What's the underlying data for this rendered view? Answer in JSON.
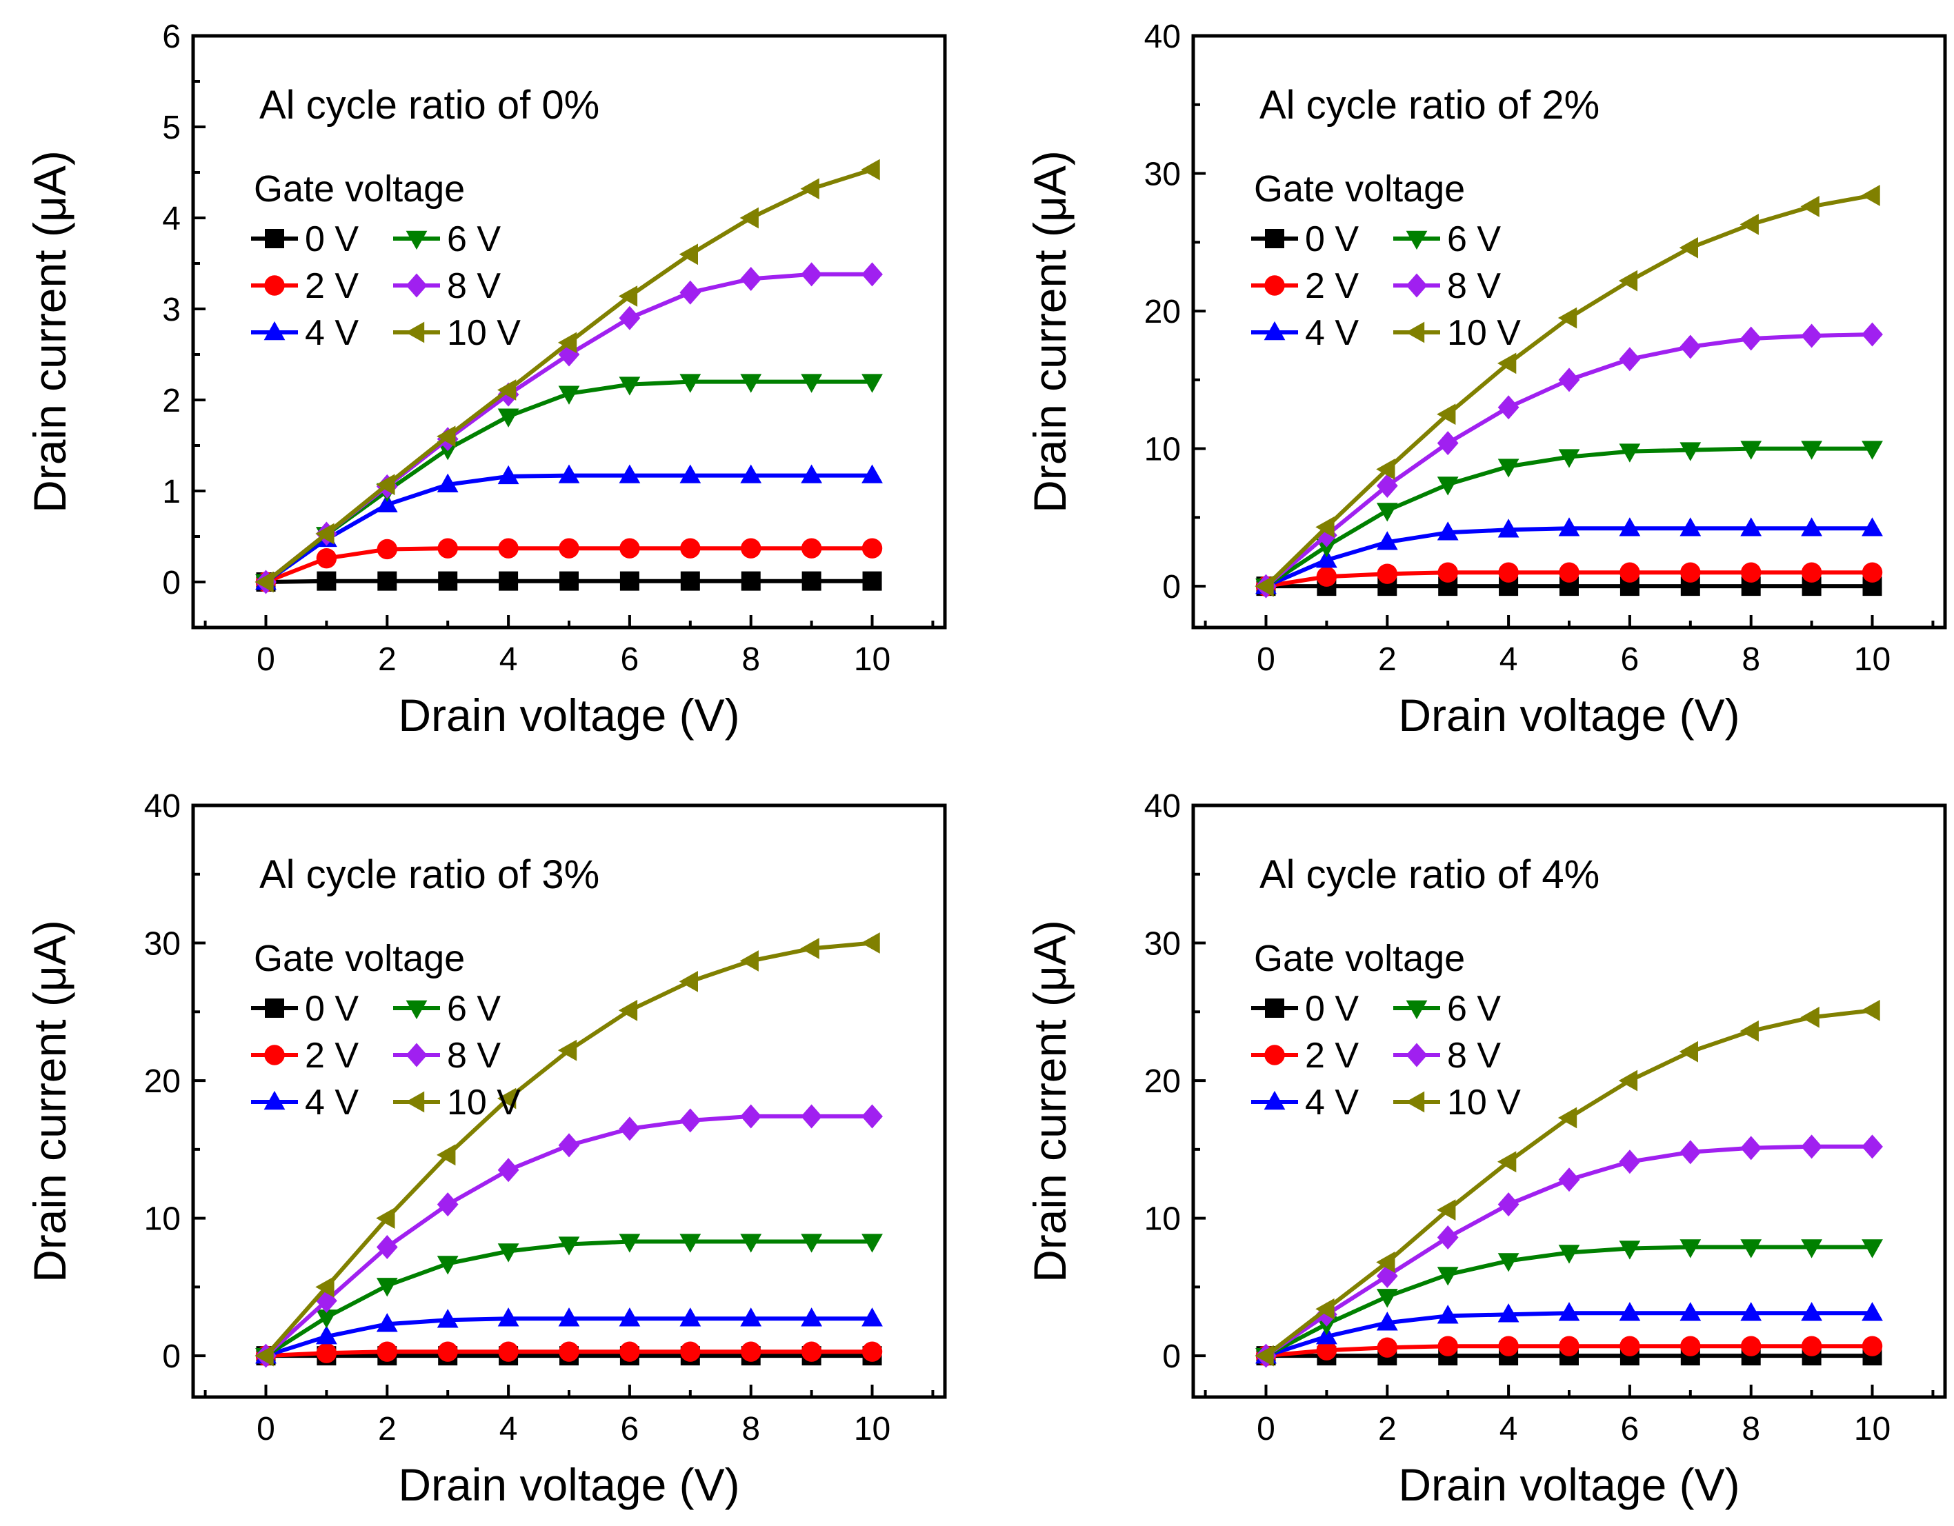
{
  "chart_data": [
    {
      "type": "line",
      "title": "Al cycle ratio of 0%",
      "xlabel": "Drain voltage (V)",
      "ylabel": "Drain current (μA)",
      "xlim": [
        -1.2,
        11.2
      ],
      "ylim": [
        -0.5,
        6
      ],
      "xticks": [
        0,
        2,
        4,
        6,
        8,
        10
      ],
      "yticks": [
        0,
        1,
        2,
        3,
        4,
        5,
        6
      ],
      "xtick_labels": [
        "0",
        "2",
        "4",
        "6",
        "8",
        "10"
      ],
      "ytick_labels": [
        "0",
        "1",
        "2",
        "3",
        "4",
        "5",
        "6"
      ],
      "legend_title": "Gate voltage",
      "legend_placement": "upper-left",
      "grid": false,
      "x": [
        0,
        1,
        2,
        3,
        4,
        5,
        6,
        7,
        8,
        9,
        10
      ],
      "series": [
        {
          "name": "0 V",
          "color": "#000000",
          "marker": "square",
          "values": [
            0,
            0.01,
            0.01,
            0.01,
            0.01,
            0.01,
            0.01,
            0.01,
            0.01,
            0.01,
            0.01
          ]
        },
        {
          "name": "2 V",
          "color": "#ff0000",
          "marker": "circle",
          "values": [
            0,
            0.26,
            0.36,
            0.37,
            0.37,
            0.37,
            0.37,
            0.37,
            0.37,
            0.37,
            0.37
          ]
        },
        {
          "name": "4 V",
          "color": "#0000ff",
          "marker": "triangle-up",
          "values": [
            0,
            0.47,
            0.85,
            1.07,
            1.16,
            1.17,
            1.17,
            1.17,
            1.17,
            1.17,
            1.17
          ]
        },
        {
          "name": "6 V",
          "color": "#008000",
          "marker": "triangle-down",
          "values": [
            0,
            0.52,
            1.0,
            1.46,
            1.82,
            2.07,
            2.17,
            2.2,
            2.2,
            2.2,
            2.2
          ]
        },
        {
          "name": "8 V",
          "color": "#a020f0",
          "marker": "diamond",
          "values": [
            0,
            0.53,
            1.05,
            1.57,
            2.06,
            2.5,
            2.9,
            3.18,
            3.33,
            3.38,
            3.38
          ]
        },
        {
          "name": "10 V",
          "color": "#808000",
          "marker": "triangle-left",
          "values": [
            0,
            0.53,
            1.07,
            1.6,
            2.11,
            2.63,
            3.14,
            3.6,
            4.0,
            4.32,
            4.53
          ]
        }
      ]
    },
    {
      "type": "line",
      "title": "Al cycle ratio of 2%",
      "xlabel": "Drain voltage (V)",
      "ylabel": "Drain current (μA)",
      "xlim": [
        -1.2,
        11.2
      ],
      "ylim": [
        -3,
        40
      ],
      "xticks": [
        0,
        2,
        4,
        6,
        8,
        10
      ],
      "yticks": [
        0,
        10,
        20,
        30,
        40
      ],
      "xtick_labels": [
        "0",
        "2",
        "4",
        "6",
        "8",
        "10"
      ],
      "ytick_labels": [
        "0",
        "10",
        "20",
        "30",
        "40"
      ],
      "legend_title": "Gate voltage",
      "legend_placement": "upper-left",
      "grid": false,
      "x": [
        0,
        1,
        2,
        3,
        4,
        5,
        6,
        7,
        8,
        9,
        10
      ],
      "series": [
        {
          "name": "0 V",
          "color": "#000000",
          "marker": "square",
          "values": [
            0,
            0,
            0,
            0,
            0,
            0,
            0,
            0,
            0,
            0,
            0
          ]
        },
        {
          "name": "2 V",
          "color": "#ff0000",
          "marker": "circle",
          "values": [
            0,
            0.7,
            0.9,
            1.0,
            1.0,
            1.0,
            1.0,
            1.0,
            1.0,
            1.0,
            1.0
          ]
        },
        {
          "name": "4 V",
          "color": "#0000ff",
          "marker": "triangle-up",
          "values": [
            0,
            1.9,
            3.2,
            3.9,
            4.1,
            4.2,
            4.2,
            4.2,
            4.2,
            4.2,
            4.2
          ]
        },
        {
          "name": "6 V",
          "color": "#008000",
          "marker": "triangle-down",
          "values": [
            0,
            2.9,
            5.5,
            7.4,
            8.7,
            9.4,
            9.8,
            9.9,
            10.0,
            10.0,
            10.0
          ]
        },
        {
          "name": "8 V",
          "color": "#a020f0",
          "marker": "diamond",
          "values": [
            0,
            3.7,
            7.3,
            10.4,
            13.0,
            15.0,
            16.5,
            17.4,
            18.0,
            18.2,
            18.3
          ]
        },
        {
          "name": "10 V",
          "color": "#808000",
          "marker": "triangle-left",
          "values": [
            0,
            4.3,
            8.5,
            12.5,
            16.2,
            19.5,
            22.2,
            24.6,
            26.3,
            27.6,
            28.4
          ]
        }
      ]
    },
    {
      "type": "line",
      "title": "Al cycle ratio of 3%",
      "xlabel": "Drain voltage (V)",
      "ylabel": "Drain current (μA)",
      "xlim": [
        -1.2,
        11.2
      ],
      "ylim": [
        -3,
        40
      ],
      "xticks": [
        0,
        2,
        4,
        6,
        8,
        10
      ],
      "yticks": [
        0,
        10,
        20,
        30,
        40
      ],
      "xtick_labels": [
        "0",
        "2",
        "4",
        "6",
        "8",
        "10"
      ],
      "ytick_labels": [
        "0",
        "10",
        "20",
        "30",
        "40"
      ],
      "legend_title": "Gate voltage",
      "legend_placement": "upper-left",
      "grid": false,
      "x": [
        0,
        1,
        2,
        3,
        4,
        5,
        6,
        7,
        8,
        9,
        10
      ],
      "series": [
        {
          "name": "0 V",
          "color": "#000000",
          "marker": "square",
          "values": [
            0,
            0,
            0,
            0,
            0,
            0,
            0,
            0,
            0,
            0,
            0
          ]
        },
        {
          "name": "2 V",
          "color": "#ff0000",
          "marker": "circle",
          "values": [
            0,
            0.2,
            0.3,
            0.3,
            0.3,
            0.3,
            0.3,
            0.3,
            0.3,
            0.3,
            0.3
          ]
        },
        {
          "name": "4 V",
          "color": "#0000ff",
          "marker": "triangle-up",
          "values": [
            0,
            1.4,
            2.3,
            2.6,
            2.7,
            2.7,
            2.7,
            2.7,
            2.7,
            2.7,
            2.7
          ]
        },
        {
          "name": "6 V",
          "color": "#008000",
          "marker": "triangle-down",
          "values": [
            0,
            2.8,
            5.1,
            6.7,
            7.6,
            8.1,
            8.3,
            8.3,
            8.3,
            8.3,
            8.3
          ]
        },
        {
          "name": "8 V",
          "color": "#a020f0",
          "marker": "diamond",
          "values": [
            0,
            4.0,
            7.9,
            11.0,
            13.5,
            15.3,
            16.5,
            17.1,
            17.4,
            17.4,
            17.4
          ]
        },
        {
          "name": "10 V",
          "color": "#808000",
          "marker": "triangle-left",
          "values": [
            0,
            5.0,
            10.0,
            14.6,
            18.7,
            22.2,
            25.1,
            27.2,
            28.7,
            29.6,
            30.0
          ]
        }
      ]
    },
    {
      "type": "line",
      "title": "Al cycle ratio of 4%",
      "xlabel": "Drain voltage (V)",
      "ylabel": "Drain current (μA)",
      "xlim": [
        -1.2,
        11.2
      ],
      "ylim": [
        -3,
        40
      ],
      "xticks": [
        0,
        2,
        4,
        6,
        8,
        10
      ],
      "yticks": [
        0,
        10,
        20,
        30,
        40
      ],
      "xtick_labels": [
        "0",
        "2",
        "4",
        "6",
        "8",
        "10"
      ],
      "ytick_labels": [
        "0",
        "10",
        "20",
        "30",
        "40"
      ],
      "legend_title": "Gate voltage",
      "legend_placement": "upper-left",
      "grid": false,
      "x": [
        0,
        1,
        2,
        3,
        4,
        5,
        6,
        7,
        8,
        9,
        10
      ],
      "series": [
        {
          "name": "0 V",
          "color": "#000000",
          "marker": "square",
          "values": [
            0,
            0,
            0,
            0,
            0,
            0,
            0,
            0,
            0,
            0,
            0
          ]
        },
        {
          "name": "2 V",
          "color": "#ff0000",
          "marker": "circle",
          "values": [
            0,
            0.4,
            0.6,
            0.7,
            0.7,
            0.7,
            0.7,
            0.7,
            0.7,
            0.7,
            0.7
          ]
        },
        {
          "name": "4 V",
          "color": "#0000ff",
          "marker": "triangle-up",
          "values": [
            0,
            1.4,
            2.4,
            2.9,
            3.0,
            3.1,
            3.1,
            3.1,
            3.1,
            3.1,
            3.1
          ]
        },
        {
          "name": "6 V",
          "color": "#008000",
          "marker": "triangle-down",
          "values": [
            0,
            2.3,
            4.3,
            5.9,
            6.9,
            7.5,
            7.8,
            7.9,
            7.9,
            7.9,
            7.9
          ]
        },
        {
          "name": "8 V",
          "color": "#a020f0",
          "marker": "diamond",
          "values": [
            0,
            3.0,
            5.8,
            8.6,
            11.0,
            12.8,
            14.1,
            14.8,
            15.1,
            15.2,
            15.2
          ]
        },
        {
          "name": "10 V",
          "color": "#808000",
          "marker": "triangle-left",
          "values": [
            0,
            3.4,
            6.8,
            10.6,
            14.1,
            17.3,
            20.0,
            22.1,
            23.6,
            24.6,
            25.1
          ]
        }
      ]
    }
  ]
}
